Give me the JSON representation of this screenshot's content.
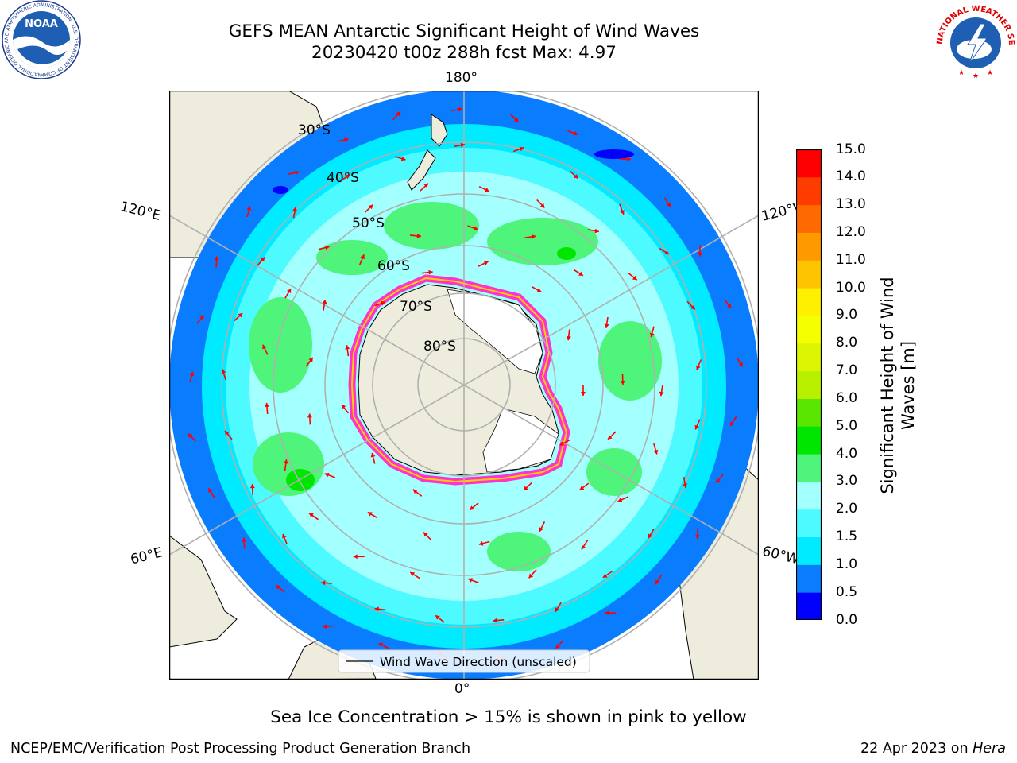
{
  "header": {
    "title_line1": "GEFS MEAN Antarctic Significant Height of Wind Waves",
    "title_line2": "20230420 t00z 288h fcst   Max: 4.97"
  },
  "logos": {
    "left": {
      "name": "noaa-logo",
      "text": "NOAA",
      "ring_text": "NATIONAL OCEANIC AND ATMOSPHERIC ADMINISTRATION · U.S. DEPARTMENT OF COMMERCE"
    },
    "right": {
      "name": "nws-logo",
      "ring_text": "NATIONAL WEATHER SERVICE"
    }
  },
  "map": {
    "projection": "South Polar Stereographic",
    "longitude_labels": {
      "top": "180°",
      "bottom": "0°",
      "upper_left": "120°E",
      "lower_left": "60°E",
      "upper_right": "120°W",
      "lower_right": "60°W"
    },
    "latitude_labels": [
      "30°S",
      "40°S",
      "50°S",
      "60°S",
      "70°S",
      "80°S"
    ],
    "legend_label": "Wind Wave Direction (unscaled)",
    "colors": {
      "land": "#eeecdc",
      "ice_shelf": "#ffffff",
      "arrow": "#ff0000",
      "grid": "#b0b0b0",
      "sea_ice": "#ff33cc"
    }
  },
  "colorbar": {
    "label": "Significant Height of Wind Waves [m]",
    "label_line1": "Significant Height of Wind",
    "label_line2": "Waves [m]",
    "ticks": [
      "15.0",
      "14.0",
      "13.0",
      "12.0",
      "11.0",
      "10.0",
      "9.0",
      "8.0",
      "7.0",
      "6.0",
      "5.0",
      "4.0",
      "3.0",
      "2.0",
      "1.5",
      "1.0",
      "0.5",
      "0.0"
    ],
    "bands": [
      {
        "range": "0.0-0.5",
        "color": "#0000ff"
      },
      {
        "range": "0.5-1.0",
        "color": "#0a7dff"
      },
      {
        "range": "1.0-1.5",
        "color": "#00ebff"
      },
      {
        "range": "1.5-2.0",
        "color": "#4dfaff"
      },
      {
        "range": "2.0-3.0",
        "color": "#a4ffff"
      },
      {
        "range": "3.0-4.0",
        "color": "#4ef57a"
      },
      {
        "range": "4.0-5.0",
        "color": "#00e600"
      },
      {
        "range": "5.0-6.0",
        "color": "#5ae600"
      },
      {
        "range": "6.0-7.0",
        "color": "#b8f000"
      },
      {
        "range": "7.0-8.0",
        "color": "#dcf500"
      },
      {
        "range": "8.0-9.0",
        "color": "#f5ff00"
      },
      {
        "range": "9.0-10.0",
        "color": "#fff000"
      },
      {
        "range": "10.0-11.0",
        "color": "#ffc400"
      },
      {
        "range": "11.0-12.0",
        "color": "#ff9900"
      },
      {
        "range": "12.0-13.0",
        "color": "#ff6a00"
      },
      {
        "range": "13.0-14.0",
        "color": "#ff3c00"
      },
      {
        "range": "14.0-15.0",
        "color": "#ff0000"
      }
    ]
  },
  "subtitle": "Sea Ice Concentration > 15% is shown in pink to yellow",
  "footer": {
    "left": "NCEP/EMC/Verification Post Processing Product Generation Branch",
    "right_prefix": "22 Apr 2023 on ",
    "right_machine": "Hera"
  }
}
